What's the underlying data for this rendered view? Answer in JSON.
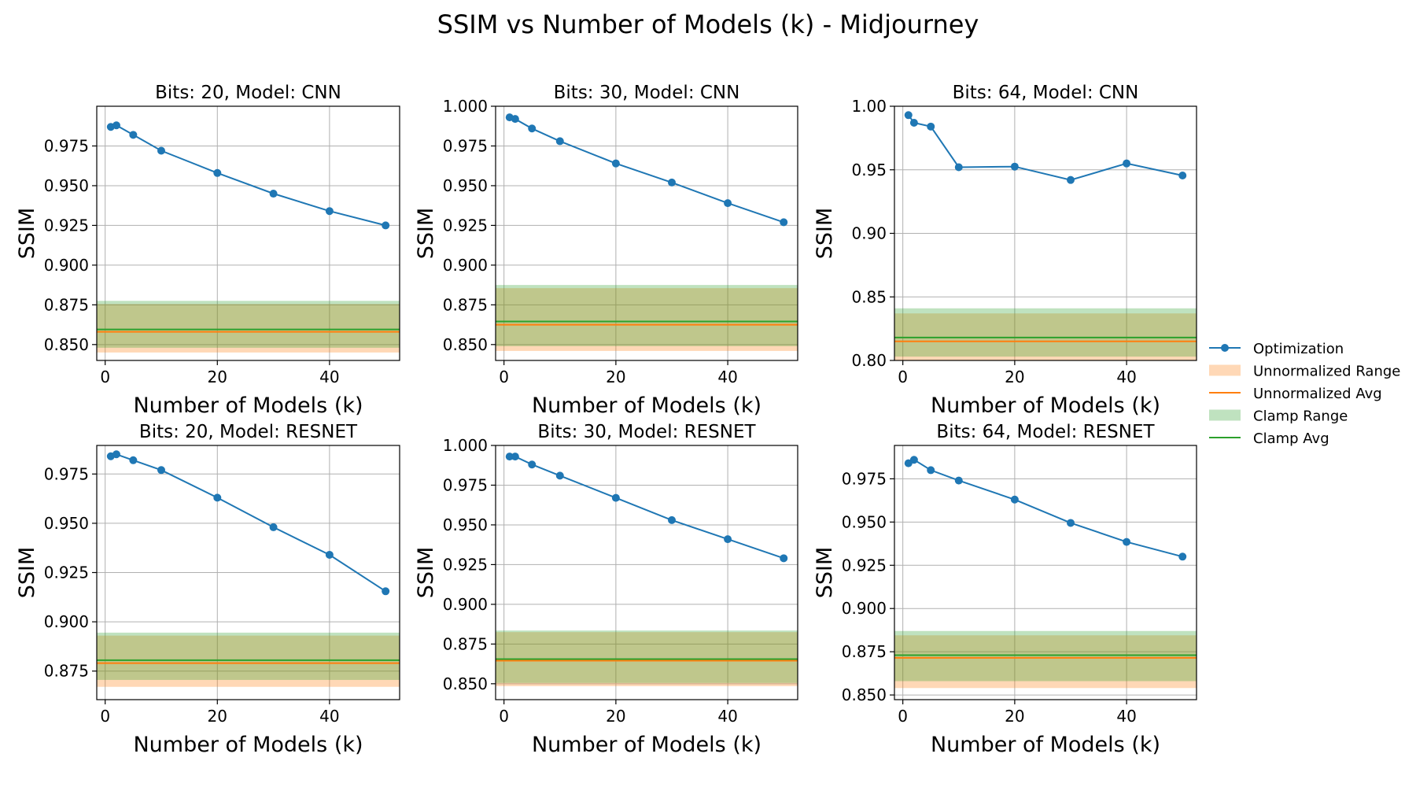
{
  "figure": {
    "title": "SSIM vs Number of Models (k) - Midjourney"
  },
  "legend": {
    "placement": "right-center",
    "items": [
      {
        "label": "Optimization",
        "kind": "line-marker",
        "color": "#1f77b4"
      },
      {
        "label": "Unnormalized Range",
        "kind": "patch",
        "color": "#ff7f0e"
      },
      {
        "label": "Unnormalized Avg",
        "kind": "line",
        "color": "#ff7f0e"
      },
      {
        "label": "Clamp Range",
        "kind": "patch",
        "color": "#2ca02c"
      },
      {
        "label": "Clamp Avg",
        "kind": "line",
        "color": "#2ca02c"
      }
    ]
  },
  "colors": {
    "optimization": "#1f77b4",
    "unnormalized": "#ff7f0e",
    "clamp": "#2ca02c",
    "grid": "#b0b0b0"
  },
  "chart_data": [
    {
      "type": "line",
      "title": "Bits: 20, Model: CNN",
      "xlabel": "Number of Models (k)",
      "ylabel": "SSIM",
      "xlim": [
        -1.5,
        52.5
      ],
      "ylim": [
        1.0,
        0.84
      ],
      "y_inverted": true,
      "grid": true,
      "x_ticks": [
        0,
        20,
        40
      ],
      "y_ticks": [
        0.85,
        0.875,
        0.9,
        0.925,
        0.95,
        0.975
      ],
      "y_tick_labels": [
        "0.850",
        "0.875",
        "0.900",
        "0.925",
        "0.950",
        "0.975"
      ],
      "x": [
        1,
        2,
        5,
        10,
        20,
        30,
        40,
        50
      ],
      "series": [
        {
          "name": "Optimization",
          "values": [
            0.987,
            0.988,
            0.982,
            0.972,
            0.958,
            0.945,
            0.934,
            0.925
          ]
        }
      ],
      "unnormalized_range": [
        0.845,
        0.8755
      ],
      "unnormalized_avg": 0.858,
      "clamp_range": [
        0.848,
        0.8775
      ],
      "clamp_avg": 0.8595
    },
    {
      "type": "line",
      "title": "Bits: 30, Model: CNN",
      "xlabel": "Number of Models (k)",
      "ylabel": "SSIM",
      "xlim": [
        -1.5,
        52.5
      ],
      "ylim": [
        1.0,
        0.84
      ],
      "y_inverted": true,
      "grid": true,
      "x_ticks": [
        0,
        20,
        40
      ],
      "y_ticks": [
        0.85,
        0.875,
        0.9,
        0.925,
        0.95,
        0.975,
        1.0
      ],
      "y_tick_labels": [
        "0.850",
        "0.875",
        "0.900",
        "0.925",
        "0.950",
        "0.975",
        "1.000"
      ],
      "x": [
        1,
        2,
        5,
        10,
        20,
        30,
        40,
        50
      ],
      "series": [
        {
          "name": "Optimization",
          "values": [
            0.993,
            0.992,
            0.986,
            0.978,
            0.964,
            0.952,
            0.939,
            0.927
          ]
        }
      ],
      "unnormalized_range": [
        0.846,
        0.8855
      ],
      "unnormalized_avg": 0.8625,
      "clamp_range": [
        0.849,
        0.8875
      ],
      "clamp_avg": 0.8645
    },
    {
      "type": "line",
      "title": "Bits: 64, Model: CNN",
      "xlabel": "Number of Models (k)",
      "ylabel": "SSIM",
      "xlim": [
        -1.5,
        52.5
      ],
      "ylim": [
        1.0,
        0.8
      ],
      "y_inverted": true,
      "grid": true,
      "x_ticks": [
        0,
        20,
        40
      ],
      "y_ticks": [
        0.8,
        0.85,
        0.9,
        0.95,
        1.0
      ],
      "y_tick_labels": [
        "0.80",
        "0.85",
        "0.90",
        "0.95",
        "1.00"
      ],
      "x": [
        1,
        2,
        5,
        10,
        20,
        30,
        40,
        50
      ],
      "series": [
        {
          "name": "Optimization",
          "values": [
            0.993,
            0.987,
            0.984,
            0.952,
            0.9525,
            0.942,
            0.955,
            0.9455
          ]
        }
      ],
      "unnormalized_range": [
        0.8,
        0.837
      ],
      "unnormalized_avg": 0.815,
      "clamp_range": [
        0.803,
        0.841
      ],
      "clamp_avg": 0.818
    },
    {
      "type": "line",
      "title": "Bits: 20, Model: RESNET",
      "xlabel": "Number of Models (k)",
      "ylabel": "SSIM",
      "xlim": [
        -1.5,
        52.5
      ],
      "ylim": [
        0.9895,
        0.8605
      ],
      "y_inverted": true,
      "grid": true,
      "x_ticks": [
        0,
        20,
        40
      ],
      "y_ticks": [
        0.875,
        0.9,
        0.925,
        0.95,
        0.975
      ],
      "y_tick_labels": [
        "0.875",
        "0.900",
        "0.925",
        "0.950",
        "0.975"
      ],
      "x": [
        1,
        2,
        5,
        10,
        20,
        30,
        40,
        50
      ],
      "series": [
        {
          "name": "Optimization",
          "values": [
            0.984,
            0.985,
            0.982,
            0.977,
            0.963,
            0.948,
            0.934,
            0.9155
          ]
        }
      ],
      "unnormalized_range": [
        0.867,
        0.893
      ],
      "unnormalized_avg": 0.879,
      "clamp_range": [
        0.8705,
        0.8945
      ],
      "clamp_avg": 0.8805
    },
    {
      "type": "line",
      "title": "Bits: 30, Model: RESNET",
      "xlabel": "Number of Models (k)",
      "ylabel": "SSIM",
      "xlim": [
        -1.5,
        52.5
      ],
      "ylim": [
        1.0,
        0.84
      ],
      "y_inverted": true,
      "grid": true,
      "x_ticks": [
        0,
        20,
        40
      ],
      "y_ticks": [
        0.85,
        0.875,
        0.9,
        0.925,
        0.95,
        0.975,
        1.0
      ],
      "y_tick_labels": [
        "0.850",
        "0.875",
        "0.900",
        "0.925",
        "0.950",
        "0.975",
        "1.000"
      ],
      "x": [
        1,
        2,
        5,
        10,
        20,
        30,
        40,
        50
      ],
      "series": [
        {
          "name": "Optimization",
          "values": [
            0.993,
            0.993,
            0.988,
            0.981,
            0.967,
            0.953,
            0.941,
            0.929
          ]
        }
      ],
      "unnormalized_range": [
        0.8485,
        0.8825
      ],
      "unnormalized_avg": 0.8645,
      "clamp_range": [
        0.8505,
        0.8835
      ],
      "clamp_avg": 0.8655
    },
    {
      "type": "line",
      "title": "Bits: 64, Model: RESNET",
      "xlabel": "Number of Models (k)",
      "ylabel": "SSIM",
      "xlim": [
        -1.5,
        52.5
      ],
      "ylim": [
        0.9943,
        0.8473
      ],
      "y_inverted": true,
      "grid": true,
      "x_ticks": [
        0,
        20,
        40
      ],
      "y_ticks": [
        0.85,
        0.875,
        0.9,
        0.925,
        0.95,
        0.975
      ],
      "y_tick_labels": [
        "0.850",
        "0.875",
        "0.900",
        "0.925",
        "0.950",
        "0.975"
      ],
      "x": [
        1,
        2,
        5,
        10,
        20,
        30,
        40,
        50
      ],
      "series": [
        {
          "name": "Optimization",
          "values": [
            0.984,
            0.986,
            0.98,
            0.974,
            0.963,
            0.9495,
            0.9385,
            0.93
          ]
        }
      ],
      "unnormalized_range": [
        0.854,
        0.8845
      ],
      "unnormalized_avg": 0.8715,
      "clamp_range": [
        0.858,
        0.887
      ],
      "clamp_avg": 0.873
    }
  ]
}
